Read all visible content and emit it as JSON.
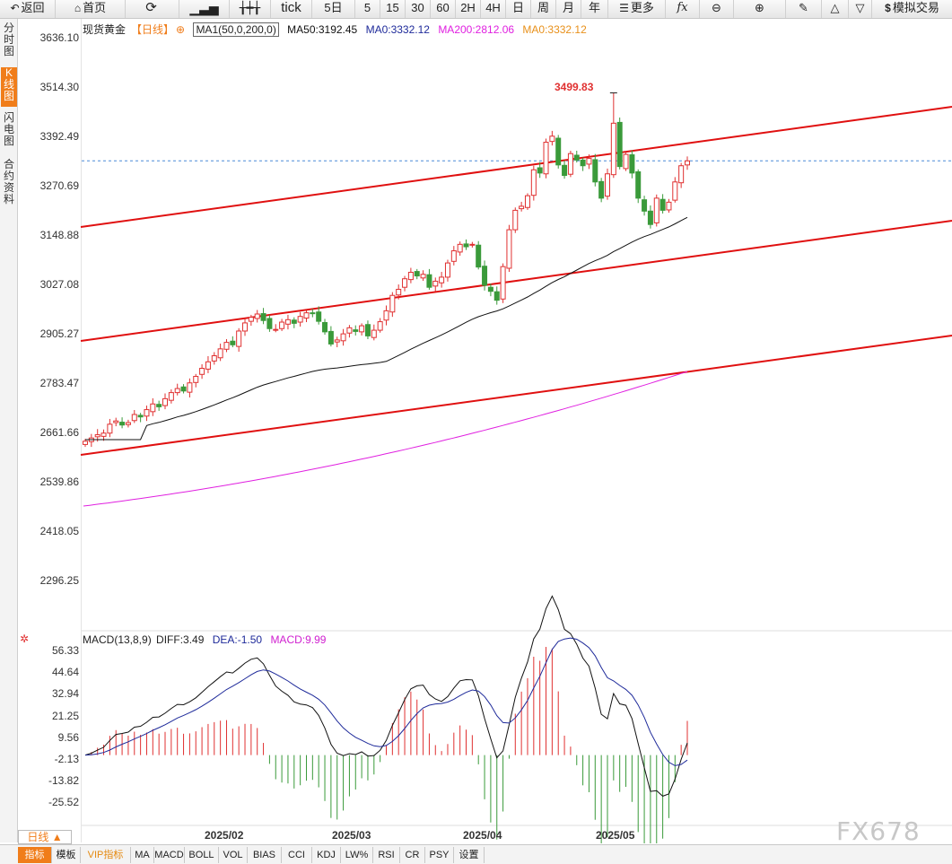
{
  "toolbar": {
    "back": "返回",
    "home": "首页",
    "tick": "tick",
    "periods": [
      "5日",
      "5",
      "15",
      "30",
      "60",
      "2H",
      "4H",
      "日",
      "周",
      "月",
      "年"
    ],
    "more": "更多",
    "fx": "fx",
    "simulated_trade": "模拟交易"
  },
  "sidetabs": [
    "分时图",
    "K线图",
    "闪电图",
    "合约资料"
  ],
  "active_sidetab": 1,
  "legend": {
    "symbol": "现货黄金",
    "period": "【日线】",
    "indicator": "MA1(50,0,200,0)",
    "ma50": "MA50:3192.45",
    "ma0a": "MA0:3332.12",
    "ma200": "MA200:2812.06",
    "ma0b": "MA0:3332.12"
  },
  "colors": {
    "up": "#e03030",
    "down": "#3a9a3a",
    "ma50": "#111111",
    "ma200": "#e020e0",
    "channel": "#e01010",
    "accent": "#f07d1a",
    "dea": "#1e2a9a",
    "macd": "#d020d0"
  },
  "peak_label": "3499.83",
  "price_axis": [
    "3636.10",
    "3514.30",
    "3392.49",
    "3270.69",
    "3148.88",
    "3027.08",
    "2905.27",
    "2783.47",
    "2661.66",
    "2539.86",
    "2418.05",
    "2296.25"
  ],
  "macd_legend": {
    "name": "MACD(13,8,9)",
    "diff": "DIFF:3.49",
    "dea": "DEA:-1.50",
    "macd": "MACD:9.99"
  },
  "macd_axis": [
    "56.33",
    "44.64",
    "32.94",
    "21.25",
    "9.56",
    "-2.13",
    "-13.82",
    "-25.52"
  ],
  "x_axis": [
    "2025/02",
    "2025/03",
    "2025/04",
    "2025/05"
  ],
  "period_label": "日线 ▲",
  "bottom_tabs": [
    "指标",
    "模板",
    "VIP指标",
    "MA",
    "MACD",
    "BOLL",
    "VOL",
    "BIAS",
    "CCI",
    "KDJ",
    "LW%",
    "RSI",
    "CR",
    "PSY",
    "设置"
  ],
  "watermark": "FX678",
  "chart_data": {
    "type": "candlestick",
    "y_range": [
      2296.25,
      3636.1
    ],
    "close_last": 3332.12,
    "peak_high": 3499.83,
    "closes": [
      2640,
      2648,
      2656,
      2660,
      2682,
      2690,
      2680,
      2686,
      2706,
      2700,
      2718,
      2732,
      2725,
      2745,
      2760,
      2770,
      2764,
      2784,
      2800,
      2820,
      2836,
      2851,
      2868,
      2884,
      2878,
      2912,
      2932,
      2946,
      2954,
      2938,
      2918,
      2916,
      2934,
      2940,
      2931,
      2948,
      2957,
      2955,
      2936,
      2910,
      2880,
      2890,
      2905,
      2920,
      2911,
      2925,
      2900,
      2914,
      2935,
      2962,
      3000,
      3015,
      3041,
      3057,
      3048,
      3052,
      3020,
      3035,
      3045,
      3080,
      3110,
      3126,
      3120,
      3126,
      3070,
      3025,
      3010,
      2988,
      3071,
      3162,
      3210,
      3220,
      3246,
      3310,
      3302,
      3378,
      3393,
      3322,
      3296,
      3350,
      3334,
      3320,
      3338,
      3280,
      3240,
      3300,
      3425,
      3318,
      3348,
      3302,
      3240,
      3208,
      3175,
      3240,
      3210,
      3230,
      3280,
      3320,
      3332
    ]
  }
}
